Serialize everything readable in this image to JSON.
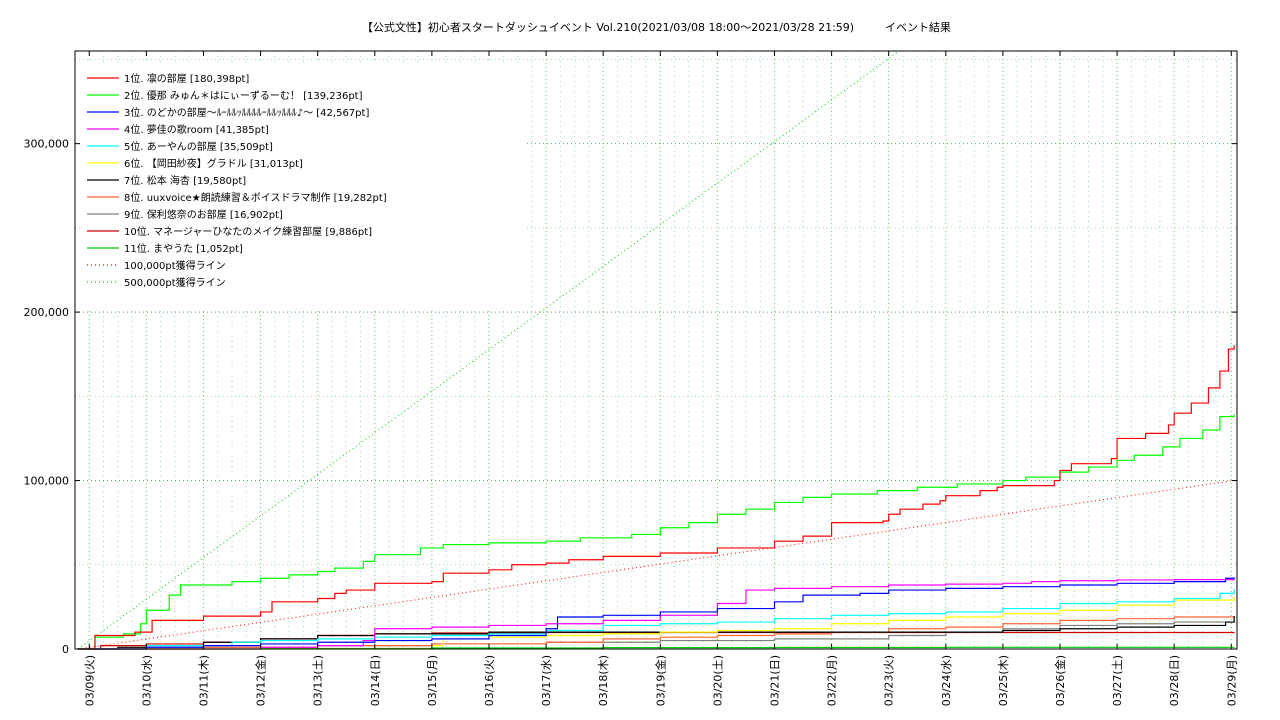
{
  "chart_data": {
    "type": "line",
    "title": "【公式文性】初心者スタートダッシュイベント Vol.210(2021/03/08 18:00〜2021/03/28 21:59)",
    "subtitle": "イベント結果",
    "xlabel": "",
    "ylabel": "",
    "x_start": "2021/03/08 18:00",
    "x_ticks": [
      "03/09(火)",
      "03/10(水)",
      "03/11(木)",
      "03/12(金)",
      "03/13(土)",
      "03/14(日)",
      "03/15(月)",
      "03/16(火)",
      "03/17(水)",
      "03/18(木)",
      "03/19(金)",
      "03/20(土)",
      "03/21(日)",
      "03/22(月)",
      "03/23(火)",
      "03/24(水)",
      "03/25(木)",
      "03/26(金)",
      "03/27(土)",
      "03/28(日)",
      "03/29(月)"
    ],
    "y_ticks": [
      {
        "value": 0,
        "label": "0"
      },
      {
        "value": 100000,
        "label": "100,000"
      },
      {
        "value": 200000,
        "label": "200,000"
      },
      {
        "value": 300000,
        "label": "300,000"
      }
    ],
    "ylim": [
      0,
      355000
    ],
    "xlim_days": [
      -0.25,
      20.1
    ],
    "grid": true,
    "legend_position": "top-left",
    "series": [
      {
        "name": "1位. 凛の部屋 [180,398pt]",
        "color": "#ff0000",
        "points": [
          [
            -0.2,
            0
          ],
          [
            0.1,
            8000
          ],
          [
            0.8,
            10000
          ],
          [
            1.1,
            17000
          ],
          [
            2,
            19500
          ],
          [
            3,
            22000
          ],
          [
            3.2,
            28000
          ],
          [
            4,
            30000
          ],
          [
            4.3,
            33000
          ],
          [
            4.5,
            35000
          ],
          [
            5,
            39000
          ],
          [
            6,
            40000
          ],
          [
            6.2,
            45000
          ],
          [
            7,
            47000
          ],
          [
            7.4,
            50000
          ],
          [
            8,
            51000
          ],
          [
            8.4,
            53000
          ],
          [
            9,
            55000
          ],
          [
            10,
            57000
          ],
          [
            11,
            60000
          ],
          [
            12,
            64000
          ],
          [
            12.5,
            67000
          ],
          [
            13,
            75000
          ],
          [
            13.9,
            76000
          ],
          [
            14,
            80000
          ],
          [
            14.2,
            83000
          ],
          [
            14.6,
            86000
          ],
          [
            14.9,
            88000
          ],
          [
            15,
            91000
          ],
          [
            15.6,
            94000
          ],
          [
            15.9,
            96000
          ],
          [
            16,
            97000
          ],
          [
            16.9,
            100000
          ],
          [
            17,
            106000
          ],
          [
            17.2,
            110000
          ],
          [
            17.9,
            113000
          ],
          [
            18,
            125000
          ],
          [
            18.5,
            128000
          ],
          [
            18.9,
            133000
          ],
          [
            19,
            140000
          ],
          [
            19.3,
            146000
          ],
          [
            19.6,
            155000
          ],
          [
            19.8,
            165000
          ],
          [
            19.95,
            178000
          ],
          [
            20.05,
            180398
          ]
        ]
      },
      {
        "name": "2位. 優那 みゅん＊はにぃーずるーむ！ [139,236pt]",
        "color": "#00ff00",
        "points": [
          [
            -0.2,
            0
          ],
          [
            0.1,
            7000
          ],
          [
            0.6,
            9000
          ],
          [
            0.9,
            15000
          ],
          [
            1,
            23000
          ],
          [
            1.4,
            32000
          ],
          [
            1.6,
            38000
          ],
          [
            2.5,
            40000
          ],
          [
            3,
            42000
          ],
          [
            3.5,
            44000
          ],
          [
            4,
            46000
          ],
          [
            4.3,
            48000
          ],
          [
            4.8,
            52000
          ],
          [
            5,
            56000
          ],
          [
            5.8,
            60000
          ],
          [
            6.2,
            62000
          ],
          [
            7,
            63000
          ],
          [
            8,
            64000
          ],
          [
            8.6,
            66000
          ],
          [
            9.5,
            68000
          ],
          [
            10,
            72000
          ],
          [
            10.5,
            75000
          ],
          [
            11,
            80000
          ],
          [
            11.5,
            83000
          ],
          [
            12,
            87000
          ],
          [
            12.5,
            90000
          ],
          [
            13,
            92000
          ],
          [
            13.8,
            94000
          ],
          [
            14.5,
            96000
          ],
          [
            15.2,
            98000
          ],
          [
            16,
            100000
          ],
          [
            16.4,
            102000
          ],
          [
            17,
            105000
          ],
          [
            17.5,
            108000
          ],
          [
            18,
            112000
          ],
          [
            18.3,
            115000
          ],
          [
            18.8,
            120000
          ],
          [
            19.1,
            125000
          ],
          [
            19.5,
            130000
          ],
          [
            19.8,
            138000
          ],
          [
            20.05,
            139236
          ]
        ]
      },
      {
        "name": "3位. のどかの部屋〜ﾙｰﾙﾙｯﾙﾙﾙﾙｰﾙﾙｯﾙﾙﾙ♪〜 [42,567pt]",
        "color": "#0000ff",
        "points": [
          [
            -0.2,
            0
          ],
          [
            1,
            1000
          ],
          [
            2,
            2000
          ],
          [
            3,
            3000
          ],
          [
            4,
            4000
          ],
          [
            5,
            5000
          ],
          [
            6,
            6000
          ],
          [
            7,
            8000
          ],
          [
            8,
            12000
          ],
          [
            8.2,
            19000
          ],
          [
            9,
            20000
          ],
          [
            10,
            22000
          ],
          [
            11,
            24000
          ],
          [
            12,
            28000
          ],
          [
            12.5,
            32000
          ],
          [
            13.5,
            33000
          ],
          [
            14,
            35000
          ],
          [
            15,
            36000
          ],
          [
            16,
            37000
          ],
          [
            17,
            38000
          ],
          [
            18,
            39000
          ],
          [
            19,
            40000
          ],
          [
            19.9,
            42000
          ],
          [
            20.05,
            42567
          ]
        ]
      },
      {
        "name": "4位. 夢佳の歌room [41,385pt]",
        "color": "#ff00ff",
        "points": [
          [
            -0.2,
            0
          ],
          [
            3,
            1000
          ],
          [
            4,
            2000
          ],
          [
            4.8,
            5000
          ],
          [
            5,
            12000
          ],
          [
            6,
            13000
          ],
          [
            7,
            14000
          ],
          [
            8,
            15000
          ],
          [
            9,
            17000
          ],
          [
            10,
            20000
          ],
          [
            11,
            27000
          ],
          [
            11.5,
            35000
          ],
          [
            12,
            36000
          ],
          [
            13,
            37000
          ],
          [
            14,
            38000
          ],
          [
            15,
            38500
          ],
          [
            16,
            39000
          ],
          [
            16.5,
            40000
          ],
          [
            17,
            40500
          ],
          [
            18,
            41000
          ],
          [
            19,
            41200
          ],
          [
            20.05,
            41385
          ]
        ]
      },
      {
        "name": "5位. あーやんの部屋 [35,509pt]",
        "color": "#00ffff",
        "points": [
          [
            -0.2,
            0
          ],
          [
            1,
            2000
          ],
          [
            2.5,
            4000
          ],
          [
            3,
            5000
          ],
          [
            4,
            6000
          ],
          [
            5,
            7000
          ],
          [
            6,
            8000
          ],
          [
            7,
            9000
          ],
          [
            8,
            11000
          ],
          [
            9,
            14000
          ],
          [
            10,
            15000
          ],
          [
            11,
            16000
          ],
          [
            12,
            18000
          ],
          [
            13,
            20000
          ],
          [
            14,
            21000
          ],
          [
            15,
            22000
          ],
          [
            16,
            24000
          ],
          [
            17,
            27000
          ],
          [
            18,
            28000
          ],
          [
            19,
            30000
          ],
          [
            19.8,
            33000
          ],
          [
            20.05,
            35509
          ]
        ]
      },
      {
        "name": "6位. 【岡田紗夜】グラドル [31,013pt]",
        "color": "#ffff00",
        "points": [
          [
            -0.2,
            0
          ],
          [
            6,
            2000
          ],
          [
            6.2,
            6000
          ],
          [
            7,
            7000
          ],
          [
            8,
            8000
          ],
          [
            9,
            9000
          ],
          [
            10,
            10000
          ],
          [
            11,
            11000
          ],
          [
            12,
            12000
          ],
          [
            13,
            15000
          ],
          [
            14,
            17000
          ],
          [
            15,
            19000
          ],
          [
            16,
            21000
          ],
          [
            17,
            23000
          ],
          [
            18,
            26000
          ],
          [
            19,
            29000
          ],
          [
            20.05,
            31013
          ]
        ]
      },
      {
        "name": "7位. 松本 海杏 [19,580pt]",
        "color": "#000000",
        "points": [
          [
            -0.2,
            0
          ],
          [
            0.5,
            1000
          ],
          [
            1,
            2000
          ],
          [
            2,
            4000
          ],
          [
            3,
            6000
          ],
          [
            4,
            8000
          ],
          [
            5,
            9000
          ],
          [
            7,
            10000
          ],
          [
            8.5,
            10000
          ],
          [
            9,
            10000
          ],
          [
            10,
            10000
          ],
          [
            11,
            10000
          ],
          [
            12,
            10000
          ],
          [
            14,
            10000
          ],
          [
            15,
            10000
          ],
          [
            16,
            11000
          ],
          [
            17,
            12000
          ],
          [
            18,
            13000
          ],
          [
            19,
            14000
          ],
          [
            19.9,
            16000
          ],
          [
            20.05,
            19580
          ]
        ]
      },
      {
        "name": "8位. uuxvoice★朗読練習＆ボイスドラマ制作 [19,282pt]",
        "color": "#ff6633",
        "points": [
          [
            -0.2,
            0
          ],
          [
            2,
            1000
          ],
          [
            4,
            2000
          ],
          [
            6,
            3000
          ],
          [
            8,
            4000
          ],
          [
            9,
            6000
          ],
          [
            10,
            7000
          ],
          [
            11,
            8000
          ],
          [
            12,
            9000
          ],
          [
            13,
            10000
          ],
          [
            14,
            12000
          ],
          [
            15,
            13000
          ],
          [
            16,
            15000
          ],
          [
            17,
            17000
          ],
          [
            18,
            18000
          ],
          [
            19,
            19000
          ],
          [
            20.05,
            19282
          ]
        ]
      },
      {
        "name": "9位. 保利悠奈のお部屋 [16,902pt]",
        "color": "#808080",
        "points": [
          [
            -0.2,
            0
          ],
          [
            2,
            1000
          ],
          [
            4,
            2000
          ],
          [
            6,
            3000
          ],
          [
            8,
            4000
          ],
          [
            10,
            5000
          ],
          [
            12,
            6000
          ],
          [
            14,
            8000
          ],
          [
            15,
            10000
          ],
          [
            16,
            12000
          ],
          [
            17,
            14000
          ],
          [
            18,
            15000
          ],
          [
            19,
            16000
          ],
          [
            20.05,
            16902
          ]
        ]
      },
      {
        "name": "10位. マネージャーひなたのメイク練習部屋 [9,886pt]",
        "color": "#cc0000",
        "points": [
          [
            -0.2,
            0
          ],
          [
            0.2,
            2000
          ],
          [
            1,
            3000
          ],
          [
            2,
            4000
          ],
          [
            3,
            6000
          ],
          [
            4,
            8000
          ],
          [
            5,
            9000
          ],
          [
            6,
            9500
          ],
          [
            8,
            9800
          ],
          [
            20.05,
            9886
          ]
        ]
      },
      {
        "name": "11位. まやうた [1,052pt]",
        "color": "#00cc00",
        "points": [
          [
            -0.2,
            0
          ],
          [
            3,
            300
          ],
          [
            6,
            600
          ],
          [
            9,
            800
          ],
          [
            12,
            900
          ],
          [
            15,
            1000
          ],
          [
            20.05,
            1052
          ]
        ]
      },
      {
        "name": "100,000pt獲得ライン",
        "color": "#ff0000",
        "dotted": true,
        "points": [
          [
            -0.2,
            0
          ],
          [
            20.05,
            100000
          ]
        ]
      },
      {
        "name": "500,000pt獲得ライン",
        "color": "#00cc00",
        "dotted": true,
        "points": [
          [
            -0.2,
            0
          ],
          [
            20.05,
            500000
          ]
        ]
      }
    ]
  }
}
